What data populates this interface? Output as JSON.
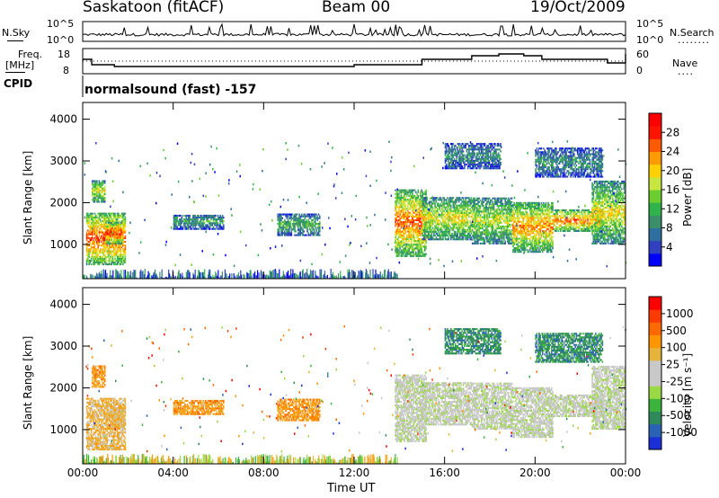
{
  "header": {
    "station": "Saskatoon (fitACF)",
    "beam": "Beam 00",
    "date": "19/Oct/2009"
  },
  "nsky": {
    "label": "N.Sky",
    "tick_high": "10^5",
    "tick_low": "10^0"
  },
  "nsearch": {
    "label": "N.Search",
    "tick_high": "10^5",
    "tick_low": "10^0",
    "legend_line": "........"
  },
  "freq": {
    "label_line1": "Freq.",
    "label_line2": "[MHz]",
    "ticks": [
      "18",
      "8"
    ]
  },
  "nave": {
    "label": "Nave",
    "ticks": [
      "60",
      "0"
    ],
    "legend_line": "...."
  },
  "cpid": {
    "label": "CPID",
    "mode_text": "normalsound (fast) -157"
  },
  "chart_data": [
    {
      "type": "heatmap",
      "panel": "power",
      "ylabel": "Slant Range [km]",
      "yticks": [
        "4000",
        "3000",
        "2000",
        "1000"
      ],
      "ylim": [
        180,
        4400
      ],
      "xlim_hours": [
        0,
        24
      ],
      "colorbar": {
        "title": "Power [dB]",
        "ticks": [
          "28",
          "24",
          "20",
          "16",
          "12",
          "8",
          "4"
        ],
        "colors": [
          "#0000ff",
          "#3040c0",
          "#2f6fa0",
          "#3a8f6a",
          "#2fb44c",
          "#6ccd30",
          "#c8e640",
          "#ffd000",
          "#ff9a00",
          "#ff5a00",
          "#ff1400",
          "#ff0000"
        ],
        "range": [
          0,
          32
        ]
      }
    },
    {
      "type": "heatmap",
      "panel": "velocity",
      "ylabel": "Slant Range [km]",
      "yticks": [
        "4000",
        "3000",
        "2000",
        "1000"
      ],
      "ylim": [
        180,
        4400
      ],
      "xlim_hours": [
        0,
        24
      ],
      "xticks": [
        "00:00",
        "04:00",
        "08:00",
        "12:00",
        "16:00",
        "20:00",
        "00:00"
      ],
      "xlabel": "Time UT",
      "colorbar": {
        "title": "Velocity [m s⁻¹]",
        "ticks": [
          "1000",
          "500",
          "100",
          "25",
          "-25",
          "-100",
          "-500",
          "-1000"
        ],
        "colors": [
          "#1a2fd6",
          "#2b63b4",
          "#2e8a5a",
          "#3cb43c",
          "#9bd845",
          "#c8c8c8",
          "#c8c8c8",
          "#e6b43c",
          "#ff9600",
          "#ff6a00",
          "#ff3a00",
          "#ff0000"
        ]
      }
    }
  ],
  "colors": {
    "ground_scatter": "#bebebe",
    "frame": "#000000"
  }
}
